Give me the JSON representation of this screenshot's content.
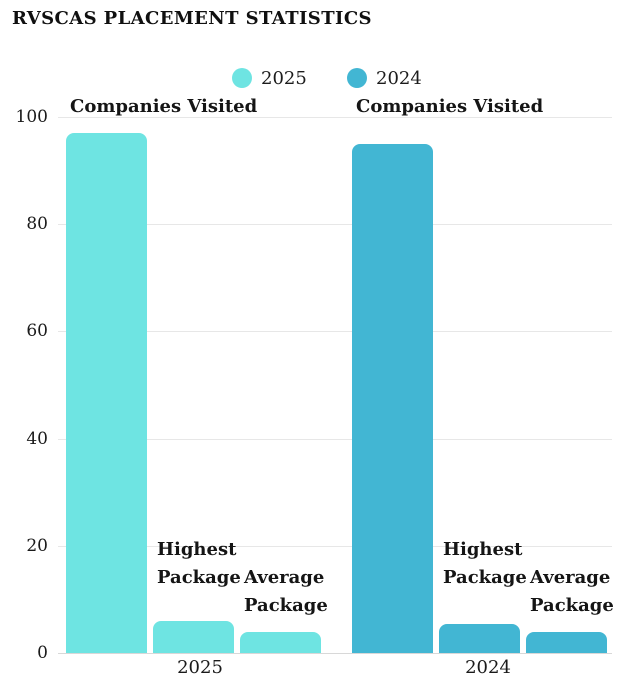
{
  "chart_data": {
    "type": "bar",
    "title": "RVSCAS PLACEMENT STATISTICS",
    "xlabel": "",
    "ylabel": "",
    "ylim": [
      0,
      100
    ],
    "yticks": [
      "0",
      "20",
      "40",
      "60",
      "80",
      "100"
    ],
    "grid": true,
    "legend_position": "top-center",
    "legend": [
      {
        "label": "2025",
        "color": "#6ee4e2"
      },
      {
        "label": "2024",
        "color": "#42b6d3"
      }
    ],
    "categories": [
      "2025",
      "2024"
    ],
    "series_labels": [
      "Companies Visited",
      "Highest Package",
      "Average Package"
    ],
    "groups": [
      {
        "category": "2025",
        "color": "#6ee4e2",
        "bars": [
          {
            "label": "Companies Visited",
            "value": 97
          },
          {
            "label": "Highest Package",
            "value": 6
          },
          {
            "label": "Average Package",
            "value": 4
          }
        ]
      },
      {
        "category": "2024",
        "color": "#42b6d3",
        "bars": [
          {
            "label": "Companies Visited",
            "value": 95
          },
          {
            "label": "Highest Package",
            "value": 5.5
          },
          {
            "label": "Average Package",
            "value": 4
          }
        ]
      }
    ],
    "colors": {
      "series_2025": "#6ee4e2",
      "series_2024": "#42b6d3",
      "gridline": "#e7e7e7",
      "text": "#1a1a1a",
      "background": "#ffffff"
    }
  }
}
